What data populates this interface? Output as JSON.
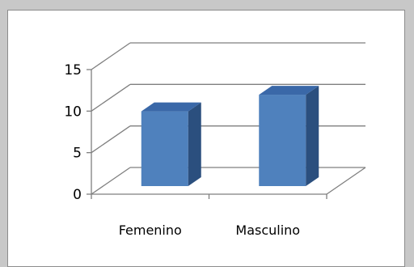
{
  "chart_data": {
    "type": "bar",
    "categories": [
      "Femenino",
      "Masculino"
    ],
    "values": [
      9,
      11
    ],
    "ylim": [
      0,
      15
    ],
    "y_ticks": [
      0,
      5,
      10,
      15
    ],
    "grid": true,
    "style": "3d-column",
    "colors": {
      "front": "#4f81bd",
      "side": "#2b4f7e",
      "top": "#3a68a8"
    }
  }
}
